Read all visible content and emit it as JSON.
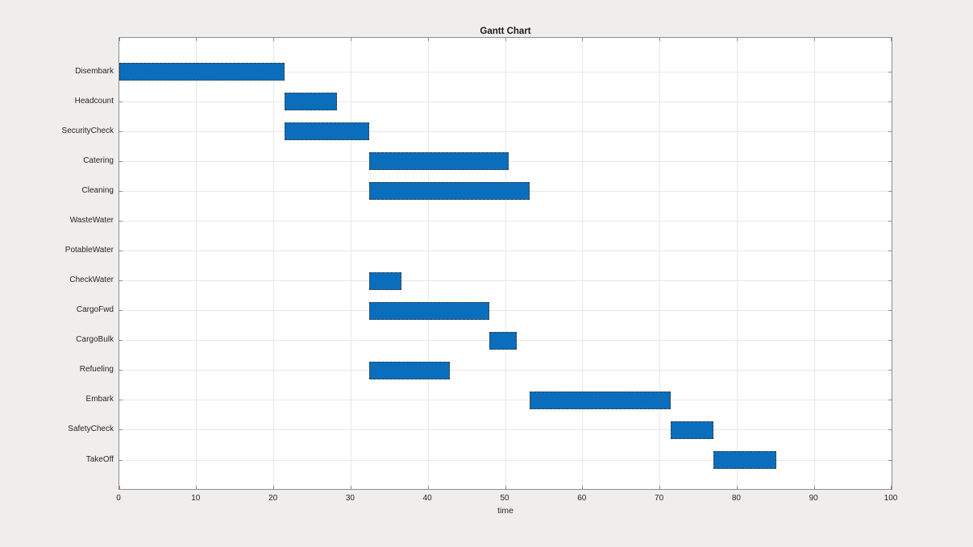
{
  "chart_data": {
    "type": "bar",
    "subtype": "gantt-horizontal",
    "title": "Gantt Chart",
    "xlabel": "time",
    "ylabel": "",
    "xlim": [
      0,
      100
    ],
    "xticks": [
      0,
      10,
      20,
      30,
      40,
      50,
      60,
      70,
      80,
      90,
      100
    ],
    "grid": true,
    "legend": false,
    "categories": [
      "Disembark",
      "Headcount",
      "SecurityCheck",
      "Catering",
      "Cleaning",
      "WasteWater",
      "PotableWater",
      "CheckWater",
      "CargoFwd",
      "CargoBulk",
      "Refueling",
      "Embark",
      "SafetyCheck",
      "TakeOff"
    ],
    "tasks": [
      {
        "name": "Disembark",
        "start": 0,
        "end": 21.4
      },
      {
        "name": "Headcount",
        "start": 21.4,
        "end": 28.2
      },
      {
        "name": "SecurityCheck",
        "start": 21.4,
        "end": 32.4
      },
      {
        "name": "Catering",
        "start": 32.4,
        "end": 50.4
      },
      {
        "name": "Cleaning",
        "start": 32.4,
        "end": 53.1
      },
      {
        "name": "WasteWater",
        "start": null,
        "end": null
      },
      {
        "name": "PotableWater",
        "start": null,
        "end": null
      },
      {
        "name": "CheckWater",
        "start": 32.4,
        "end": 36.5
      },
      {
        "name": "CargoFwd",
        "start": 32.4,
        "end": 47.9
      },
      {
        "name": "CargoBulk",
        "start": 47.9,
        "end": 51.5
      },
      {
        "name": "Refueling",
        "start": 32.4,
        "end": 42.8
      },
      {
        "name": "Embark",
        "start": 53.1,
        "end": 71.4
      },
      {
        "name": "SafetyCheck",
        "start": 71.4,
        "end": 76.9
      },
      {
        "name": "TakeOff",
        "start": 76.9,
        "end": 85.1
      }
    ],
    "colors": {
      "bar": "#0a6ebd",
      "bar_edge": "#3c3c3c",
      "plot_bg": "#ffffff",
      "figure_bg": "#efeeec",
      "grid": "#e7e7e7",
      "axis": "#8c8c8c",
      "text": "#262626"
    }
  }
}
